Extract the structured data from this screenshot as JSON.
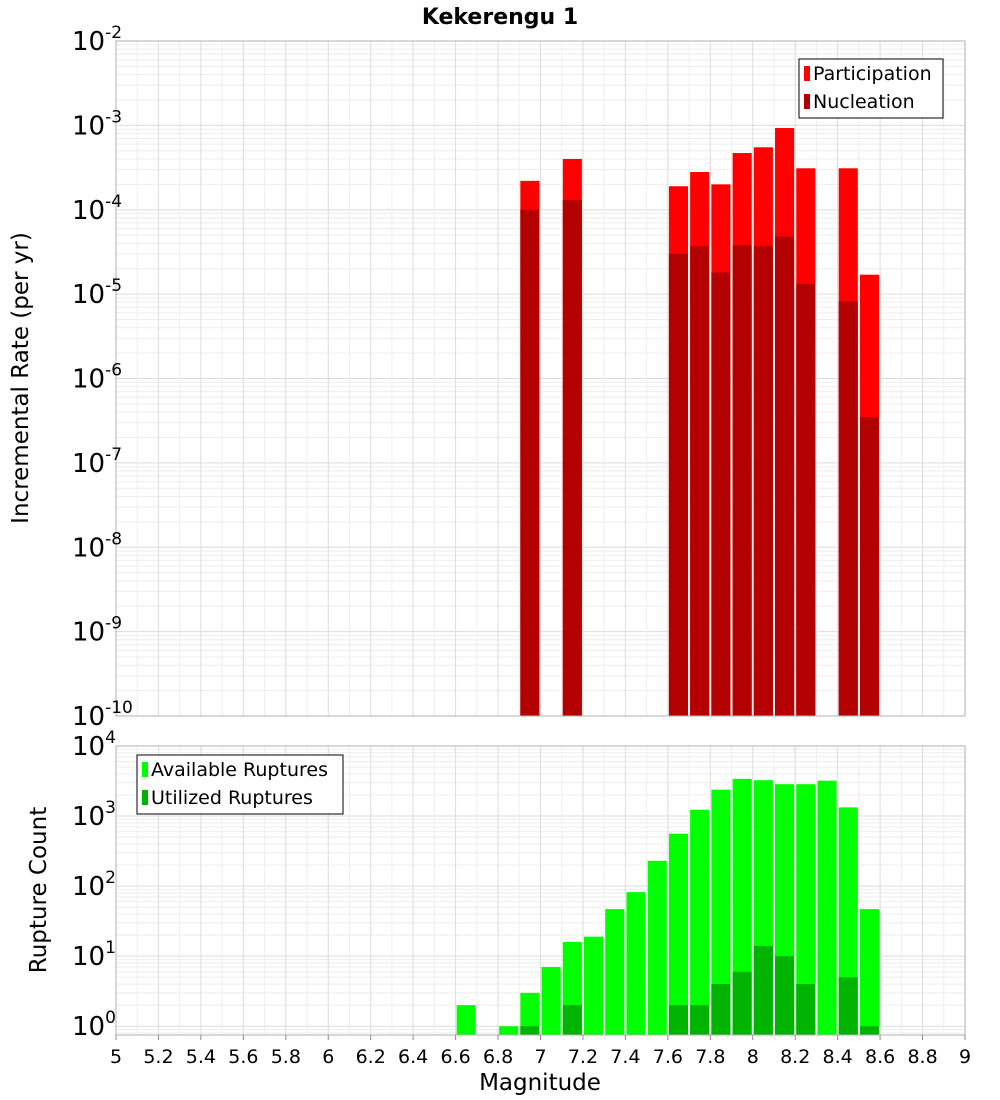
{
  "chart_data": [
    {
      "type": "bar",
      "title": "Kekerengu 1",
      "xlabel": "",
      "ylabel": "Incremental Rate (per yr)",
      "y_scale": "log",
      "xlim": [
        5,
        9
      ],
      "ylim": [
        1e-10,
        0.01
      ],
      "y_tick_exponents": [
        "-10",
        "-9",
        "-8",
        "-7",
        "-6",
        "-5",
        "-4",
        "-3",
        "-2"
      ],
      "y_tick_base": "10",
      "bar_width": 0.09,
      "grid": true,
      "legend_placement": "top-right",
      "x": [
        6.95,
        7.15,
        7.65,
        7.75,
        7.85,
        7.95,
        8.05,
        8.15,
        8.25,
        8.45,
        8.55
      ],
      "series": [
        {
          "name": "Participation",
          "color": "#ff0000",
          "values": [
            0.00022,
            0.0004,
            0.00019,
            0.00028,
            0.0002,
            0.00047,
            0.00055,
            0.00093,
            0.00031,
            0.00031,
            1.7e-05
          ]
        },
        {
          "name": "Nucleation",
          "color": "#b30000",
          "values": [
            0.0001,
            0.00013,
            3e-05,
            3.7e-05,
            1.8e-05,
            3.8e-05,
            3.7e-05,
            4.8e-05,
            1.32e-05,
            8.2e-06,
            3.5e-07
          ]
        }
      ]
    },
    {
      "type": "bar",
      "title": "",
      "xlabel": "Magnitude",
      "ylabel": "Rupture Count",
      "y_scale": "log",
      "xlim": [
        5,
        9
      ],
      "ylim": [
        0.75,
        10000
      ],
      "x_ticks": [
        "5",
        "5.2",
        "5.4",
        "5.6",
        "5.8",
        "6",
        "6.2",
        "6.4",
        "6.6",
        "6.8",
        "7",
        "7.2",
        "7.4",
        "7.6",
        "7.8",
        "8",
        "8.2",
        "8.4",
        "8.6",
        "8.8",
        "9"
      ],
      "y_tick_exponents": [
        "0",
        "1",
        "2",
        "3",
        "4"
      ],
      "y_tick_base": "10",
      "bar_width": 0.09,
      "grid": true,
      "legend_placement": "top-left",
      "x": [
        6.65,
        6.75,
        6.85,
        6.95,
        7.05,
        7.15,
        7.25,
        7.35,
        7.45,
        7.55,
        7.65,
        7.75,
        7.85,
        7.95,
        8.05,
        8.15,
        8.25,
        8.35,
        8.45,
        8.55
      ],
      "series": [
        {
          "name": "Available Ruptures",
          "color": "#00ff00",
          "values": [
            2,
            0,
            1,
            3,
            7,
            16,
            19,
            47,
            82,
            230,
            560,
            1230,
            2380,
            3400,
            3250,
            2850,
            2850,
            3200,
            1330,
            47
          ]
        },
        {
          "name": "Utilized Ruptures",
          "color": "#00b300",
          "values": [
            0,
            0,
            0,
            1,
            0,
            2,
            0,
            0,
            0,
            0,
            2,
            2,
            4,
            6,
            14,
            10,
            4,
            0,
            5,
            1
          ]
        }
      ]
    }
  ]
}
